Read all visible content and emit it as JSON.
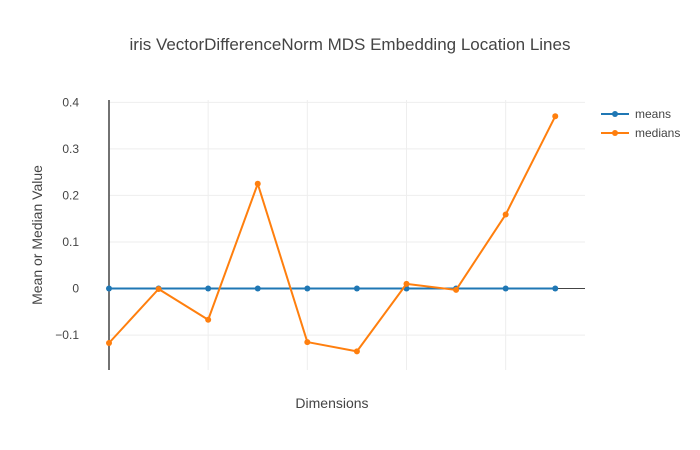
{
  "chart_data": {
    "type": "line",
    "title": "iris VectorDifferenceNorm MDS Embedding Location Lines",
    "xlabel": "Dimensions",
    "ylabel": "Mean or Median Value",
    "x": [
      0,
      1,
      2,
      3,
      4,
      5,
      6,
      7,
      8,
      9
    ],
    "xlim": [
      0,
      9.6
    ],
    "ylim": [
      -0.175,
      0.405
    ],
    "yticks": [
      -0.1,
      0,
      0.1,
      0.2,
      0.3,
      0.4
    ],
    "ytick_labels": [
      "−0.1",
      "0",
      "0.1",
      "0.2",
      "0.3",
      "0.4"
    ],
    "grid": true,
    "legend_position": "top-right",
    "series": [
      {
        "name": "means",
        "color": "#1f77b4",
        "values": [
          0,
          0,
          0,
          0,
          0,
          0,
          0,
          0,
          0,
          0
        ]
      },
      {
        "name": "medians",
        "color": "#ff7f0e",
        "values": [
          -0.117,
          -0.001,
          -0.067,
          0.225,
          -0.115,
          -0.135,
          0.01,
          -0.003,
          0.159,
          0.37
        ]
      }
    ]
  }
}
